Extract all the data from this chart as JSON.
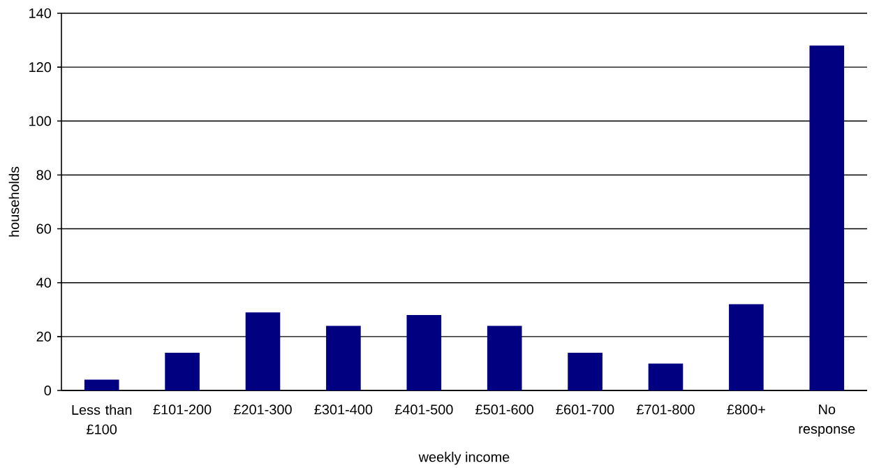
{
  "chart_data": {
    "type": "bar",
    "xlabel": "weekly income",
    "ylabel": "households",
    "categories": [
      "Less than £100",
      "£101-200",
      "£201-300",
      "£301-400",
      "£401-500",
      "£501-600",
      "£601-700",
      "£701-800",
      "£800+",
      "No response"
    ],
    "values": [
      4,
      14,
      29,
      24,
      28,
      24,
      14,
      10,
      32,
      128
    ],
    "color": "#000080",
    "ylim": [
      0,
      140
    ],
    "yticks": [
      0,
      20,
      40,
      60,
      80,
      100,
      120,
      140
    ],
    "grid": "y"
  }
}
